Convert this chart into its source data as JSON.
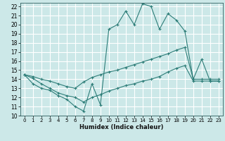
{
  "title": "",
  "xlabel": "Humidex (Indice chaleur)",
  "bg_color": "#cce8e8",
  "grid_color": "#ffffff",
  "line_color": "#2d7d78",
  "xlim": [
    -0.5,
    23.5
  ],
  "ylim": [
    10,
    22.4
  ],
  "yticks": [
    10,
    11,
    12,
    13,
    14,
    15,
    16,
    17,
    18,
    19,
    20,
    21,
    22
  ],
  "xticks": [
    0,
    1,
    2,
    3,
    4,
    5,
    6,
    7,
    8,
    9,
    10,
    11,
    12,
    13,
    14,
    15,
    16,
    17,
    18,
    19,
    20,
    21,
    22,
    23
  ],
  "line1_x": [
    0,
    1,
    2,
    3,
    4,
    5,
    6,
    7,
    8,
    9,
    10,
    11,
    12,
    13,
    14,
    15,
    16,
    17,
    18,
    19,
    20,
    21,
    22,
    23
  ],
  "line1_y": [
    14.5,
    13.5,
    13.0,
    12.8,
    12.2,
    11.8,
    11.0,
    10.5,
    13.5,
    11.2,
    19.5,
    20.0,
    21.5,
    20.0,
    22.3,
    22.0,
    19.5,
    21.2,
    20.5,
    19.3,
    14.0,
    16.2,
    13.8,
    13.8
  ],
  "line2_x": [
    0,
    1,
    2,
    3,
    4,
    5,
    6,
    7,
    8,
    9,
    10,
    11,
    12,
    13,
    14,
    15,
    16,
    17,
    18,
    19,
    20,
    21,
    22,
    23
  ],
  "line2_y": [
    14.5,
    14.3,
    14.0,
    13.8,
    13.5,
    13.2,
    13.0,
    13.7,
    14.2,
    14.5,
    14.8,
    15.0,
    15.3,
    15.6,
    15.9,
    16.2,
    16.5,
    16.8,
    17.2,
    17.5,
    14.0,
    14.0,
    14.0,
    14.0
  ],
  "line3_x": [
    0,
    1,
    2,
    3,
    4,
    5,
    6,
    7,
    8,
    9,
    10,
    11,
    12,
    13,
    14,
    15,
    16,
    17,
    18,
    19,
    20,
    21,
    22,
    23
  ],
  "line3_y": [
    14.5,
    14.1,
    13.5,
    13.0,
    12.5,
    12.2,
    12.0,
    11.5,
    12.0,
    12.3,
    12.7,
    13.0,
    13.3,
    13.5,
    13.8,
    14.0,
    14.3,
    14.8,
    15.2,
    15.5,
    13.8,
    13.8,
    13.8,
    13.8
  ]
}
